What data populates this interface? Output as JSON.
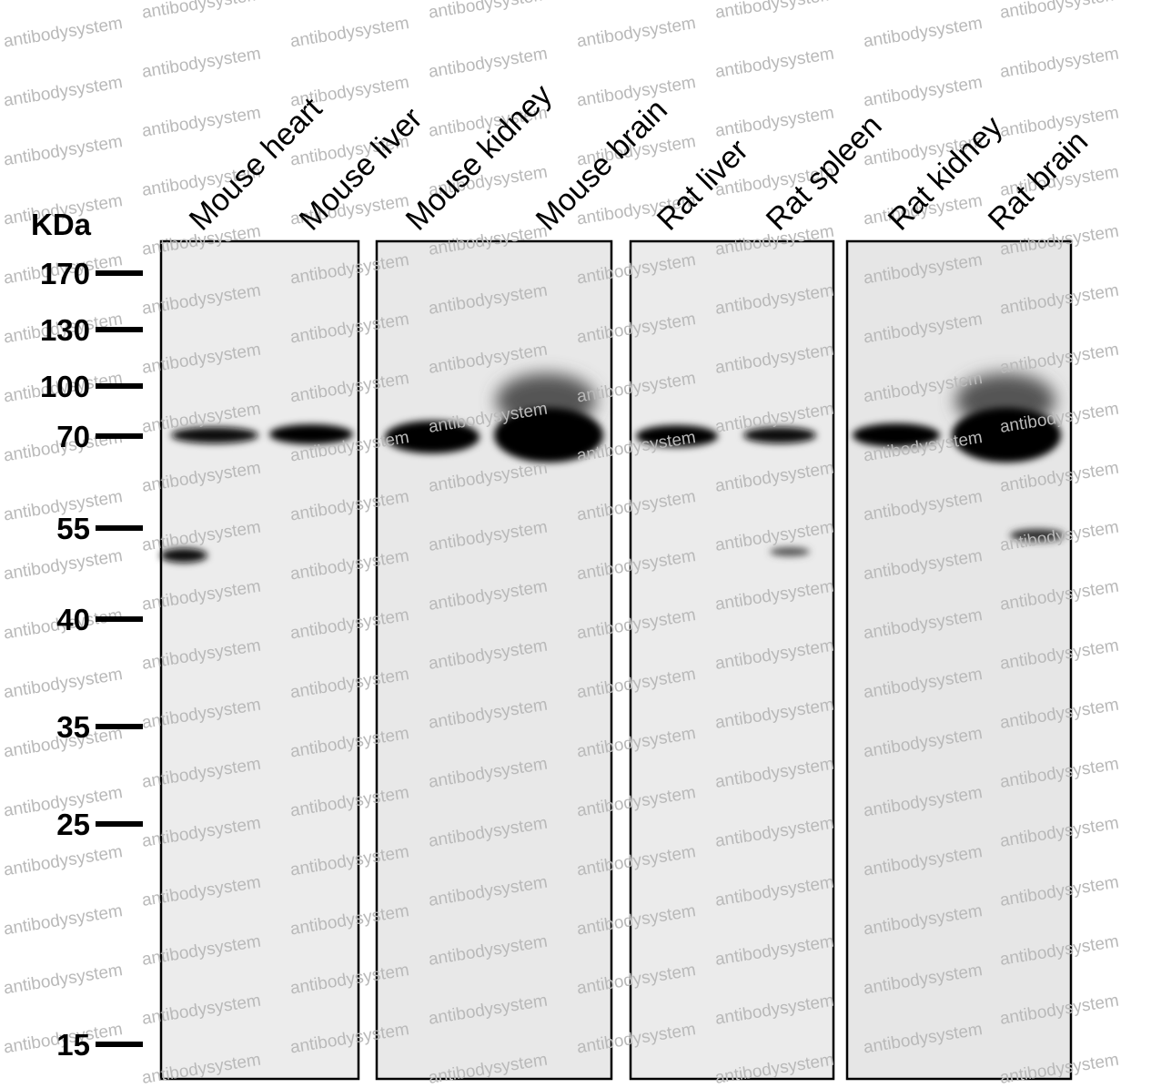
{
  "unit_label": "KDa",
  "markers": [
    "170",
    "130",
    "100",
    "70",
    "55",
    "40",
    "35",
    "25",
    "15"
  ],
  "lanes": [
    "Mouse heart",
    "Mouse liver",
    "Mouse kidney",
    "Mouse brain",
    "Rat liver",
    "Rat spleen",
    "Rat kidney",
    "Rat brain"
  ],
  "watermark": "antibodysystem"
}
